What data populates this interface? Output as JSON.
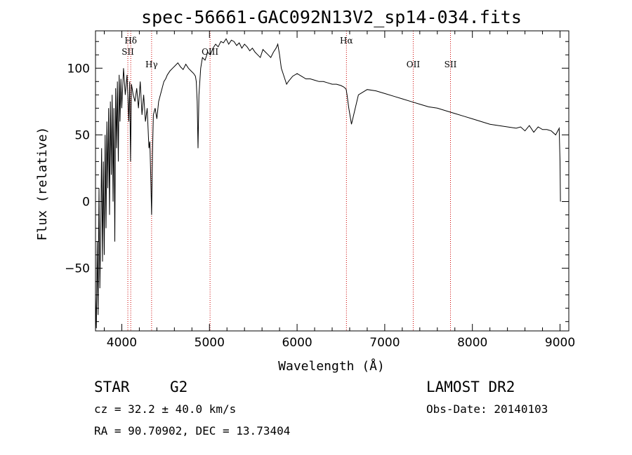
{
  "chart_data": {
    "type": "line",
    "title": "spec-56661-GAC092N13V2_sp14-034.fits",
    "xlabel": "Wavelength (Å)",
    "ylabel": "Flux (relative)",
    "xlim": [
      3700,
      9100
    ],
    "ylim": [
      -97,
      128
    ],
    "xticks": [
      4000,
      5000,
      6000,
      7000,
      8000,
      9000
    ],
    "yticks": [
      -50,
      0,
      50,
      100
    ],
    "yticklabels": [
      "−50",
      "0",
      "50",
      "100"
    ],
    "grid": false,
    "line_color": "#000000",
    "marker_color": "#cc0000",
    "series": [
      {
        "x": [
          3700,
          3710,
          3720,
          3730,
          3740,
          3750,
          3760,
          3770,
          3780,
          3790,
          3800,
          3810,
          3820,
          3830,
          3840,
          3850,
          3860,
          3870,
          3880,
          3890,
          3900,
          3910,
          3920,
          3930,
          3940,
          3950,
          3960,
          3970,
          3980,
          3990,
          4000,
          4020,
          4040,
          4060,
          4080,
          4090,
          4100,
          4110,
          4130,
          4150,
          4170,
          4190,
          4210,
          4230,
          4250,
          4270,
          4290,
          4310,
          4320,
          4330,
          4340,
          4350,
          4360,
          4380,
          4400,
          4420,
          4440,
          4460,
          4480,
          4500,
          4520,
          4550,
          4580,
          4610,
          4640,
          4670,
          4700,
          4730,
          4760,
          4790,
          4820,
          4840,
          4850,
          4860,
          4870,
          4880,
          4900,
          4920,
          4950,
          4980,
          5010,
          5040,
          5070,
          5100,
          5130,
          5160,
          5190,
          5220,
          5250,
          5280,
          5310,
          5340,
          5370,
          5400,
          5430,
          5460,
          5490,
          5520,
          5550,
          5580,
          5610,
          5640,
          5670,
          5700,
          5730,
          5760,
          5780,
          5800,
          5820,
          5840,
          5860,
          5880,
          5900,
          5950,
          6000,
          6050,
          6100,
          6150,
          6200,
          6250,
          6300,
          6350,
          6400,
          6450,
          6500,
          6530,
          6550,
          6560,
          6570,
          6590,
          6620,
          6700,
          6800,
          6900,
          7000,
          7100,
          7200,
          7300,
          7400,
          7500,
          7600,
          7700,
          7800,
          7900,
          8000,
          8100,
          8200,
          8300,
          8400,
          8500,
          8550,
          8600,
          8650,
          8700,
          8750,
          8800,
          8850,
          8900,
          8950,
          8990,
          9000,
          9005
        ],
        "y": [
          -70,
          -95,
          -30,
          -85,
          10,
          -65,
          -20,
          40,
          -45,
          30,
          -40,
          50,
          -20,
          60,
          10,
          70,
          -10,
          75,
          20,
          80,
          0,
          70,
          -30,
          85,
          40,
          90,
          30,
          95,
          60,
          92,
          70,
          100,
          80,
          95,
          60,
          90,
          30,
          88,
          80,
          75,
          85,
          70,
          90,
          65,
          80,
          60,
          70,
          40,
          45,
          20,
          -10,
          35,
          65,
          70,
          62,
          75,
          80,
          85,
          90,
          92,
          95,
          98,
          100,
          102,
          104,
          101,
          99,
          103,
          100,
          98,
          96,
          94,
          90,
          75,
          40,
          80,
          100,
          108,
          106,
          112,
          110,
          115,
          118,
          116,
          120,
          119,
          122,
          118,
          121,
          120,
          117,
          119,
          115,
          118,
          116,
          113,
          115,
          112,
          110,
          108,
          114,
          112,
          110,
          108,
          112,
          115,
          118,
          110,
          100,
          96,
          92,
          88,
          90,
          94,
          96,
          94,
          92,
          92,
          91,
          90,
          90,
          89,
          88,
          88,
          87,
          86,
          85,
          84,
          80,
          70,
          58,
          80,
          84,
          83,
          81,
          79,
          77,
          75,
          73,
          71,
          70,
          68,
          66,
          64,
          62,
          60,
          58,
          57,
          56,
          55,
          56,
          53,
          57,
          52,
          56,
          54,
          54,
          53,
          50,
          55,
          30,
          0
        ]
      }
    ],
    "line_markers": [
      {
        "label": "Hδ",
        "wavelength": 4102,
        "level": "top"
      },
      {
        "label": "SII",
        "wavelength": 4069,
        "level": "second"
      },
      {
        "label": "Hγ",
        "wavelength": 4340,
        "level": "fourth"
      },
      {
        "label": "OIII",
        "wavelength": 5007,
        "level": "third"
      },
      {
        "label": "Hα",
        "wavelength": 6563,
        "level": "top"
      },
      {
        "label": "OII",
        "wavelength": 7325,
        "level": "fourth"
      },
      {
        "label": "SII",
        "wavelength": 7750,
        "level": "fourth"
      }
    ]
  },
  "info": {
    "object_class": "STAR",
    "subclass": "G2",
    "survey": "LAMOST DR2",
    "cz": "cz = 32.2 ± 40.0 km/s",
    "obs_date": "Obs-Date: 20140103",
    "radec": "RA =  90.70902, DEC =  13.73404"
  }
}
